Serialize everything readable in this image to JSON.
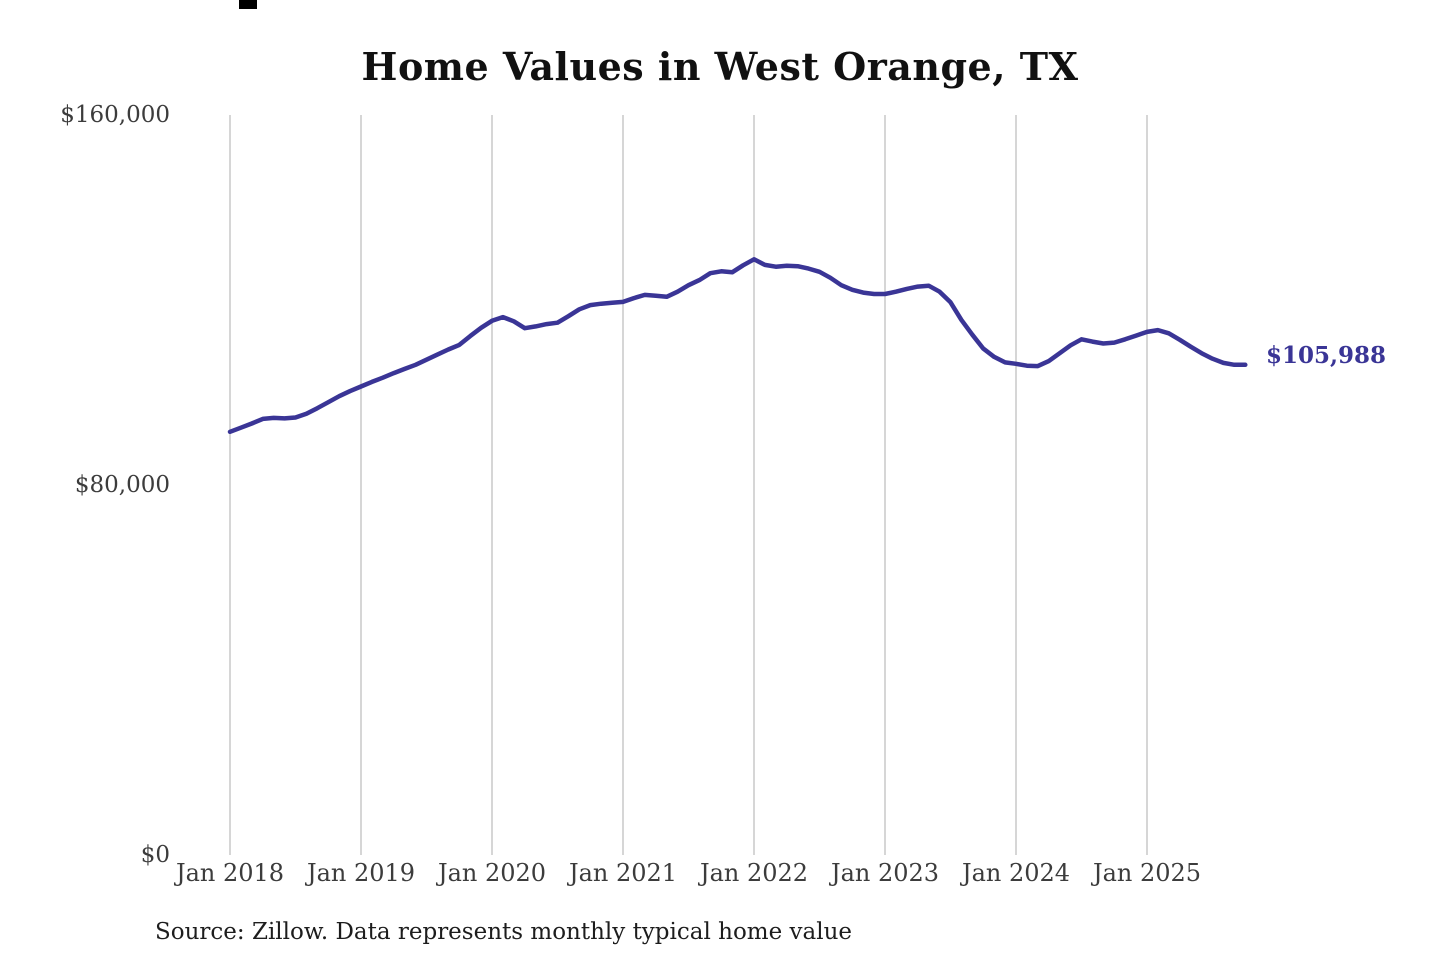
{
  "chart_data": {
    "type": "line",
    "title": "Home Values in West Orange, TX",
    "source_note": "Source: Zillow. Data represents monthly typical home value",
    "xlabel": "",
    "ylabel": "",
    "ylim": [
      0,
      160000
    ],
    "grid": "vertical-only",
    "legend": "none",
    "line_color": "#3a3596",
    "grid_color": "#c8c8c8",
    "end_label": "$105,988",
    "last_value": 105988,
    "yticks": [
      {
        "value": 0,
        "label": "$0"
      },
      {
        "value": 80000,
        "label": "$80,000"
      },
      {
        "value": 160000,
        "label": "$160,000"
      }
    ],
    "xticks": [
      {
        "month_index": 0,
        "label": "Jan 2018"
      },
      {
        "month_index": 12,
        "label": "Jan 2019"
      },
      {
        "month_index": 24,
        "label": "Jan 2020"
      },
      {
        "month_index": 36,
        "label": "Jan 2021"
      },
      {
        "month_index": 48,
        "label": "Jan 2022"
      },
      {
        "month_index": 60,
        "label": "Jan 2023"
      },
      {
        "month_index": 72,
        "label": "Jan 2024"
      },
      {
        "month_index": 84,
        "label": "Jan 2025"
      }
    ],
    "series": [
      {
        "name": "Monthly typical home value",
        "start_month": "2018-01",
        "frequency": "monthly",
        "values": [
          91500,
          92400,
          93300,
          94300,
          94500,
          94400,
          94600,
          95400,
          96600,
          97900,
          99200,
          100300,
          101300,
          102300,
          103200,
          104200,
          105100,
          106000,
          107100,
          108200,
          109300,
          110300,
          112200,
          114000,
          115500,
          116300,
          115400,
          113900,
          114300,
          114800,
          115100,
          116500,
          118000,
          118900,
          119200,
          119400,
          119600,
          120400,
          121100,
          120900,
          120700,
          121800,
          123200,
          124300,
          125800,
          126200,
          126000,
          127500,
          128800,
          127600,
          127200,
          127400,
          127300,
          126800,
          126100,
          124800,
          123200,
          122200,
          121600,
          121300,
          121300,
          121800,
          122400,
          122900,
          123100,
          121800,
          119500,
          115700,
          112500,
          109500,
          107700,
          106500,
          106200,
          105800,
          105700,
          106800,
          108500,
          110200,
          111500,
          111000,
          110600,
          110800,
          111500,
          112300,
          113100,
          113500,
          112800,
          111400,
          109900,
          108500,
          107300,
          106400,
          106000,
          105988
        ]
      }
    ]
  }
}
